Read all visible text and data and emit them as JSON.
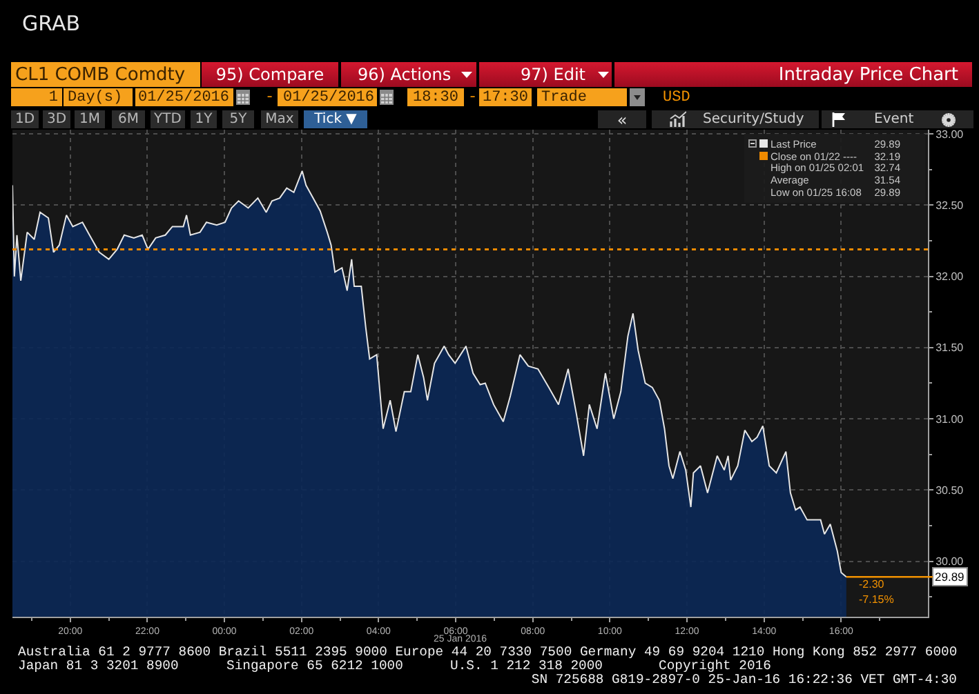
{
  "chart_data": {
    "type": "area",
    "title": "Intraday Price Chart",
    "subtitle": "CL1 COMB Comdty",
    "xlabel": "25 Jan 2016",
    "x": [
      "2016-01-24T18:30",
      "2016-01-24T18:33",
      "2016-01-24T18:37",
      "2016-01-24T18:43",
      "2016-01-24T18:53",
      "2016-01-24T19:04",
      "2016-01-24T19:13",
      "2016-01-24T19:26",
      "2016-01-24T19:34",
      "2016-01-24T19:43",
      "2016-01-24T19:54",
      "2016-01-24T20:04",
      "2016-01-24T20:19",
      "2016-01-24T20:30",
      "2016-01-24T20:45",
      "2016-01-24T21:00",
      "2016-01-24T21:13",
      "2016-01-24T21:24",
      "2016-01-24T21:39",
      "2016-01-24T21:52",
      "2016-01-24T22:01",
      "2016-01-24T22:13",
      "2016-01-24T22:28",
      "2016-01-24T22:39",
      "2016-01-24T22:56",
      "2016-01-24T23:01",
      "2016-01-24T23:07",
      "2016-01-24T23:22",
      "2016-01-24T23:32",
      "2016-01-24T23:48",
      "2016-01-25T00:01",
      "2016-01-25T00:11",
      "2016-01-25T00:22",
      "2016-01-25T00:37",
      "2016-01-25T00:52",
      "2016-01-25T01:05",
      "2016-01-25T01:14",
      "2016-01-25T01:26",
      "2016-01-25T01:37",
      "2016-01-25T01:48",
      "2016-01-25T02:01",
      "2016-01-25T02:07",
      "2016-01-25T02:18",
      "2016-01-25T02:29",
      "2016-01-25T02:40",
      "2016-01-25T02:46",
      "2016-01-25T02:52",
      "2016-01-25T03:03",
      "2016-01-25T03:11",
      "2016-01-25T03:18",
      "2016-01-25T03:22",
      "2016-01-25T03:33",
      "2016-01-25T03:40",
      "2016-01-25T03:46",
      "2016-01-25T03:57",
      "2016-01-25T04:07",
      "2016-01-25T04:18",
      "2016-01-25T04:27",
      "2016-01-25T04:40",
      "2016-01-25T04:50",
      "2016-01-25T05:01",
      "2016-01-25T05:10",
      "2016-01-25T05:16",
      "2016-01-25T05:27",
      "2016-01-25T05:42",
      "2016-01-25T05:49",
      "2016-01-25T05:59",
      "2016-01-25T06:16",
      "2016-01-25T06:27",
      "2016-01-25T06:38",
      "2016-01-25T06:46",
      "2016-01-25T06:59",
      "2016-01-25T07:14",
      "2016-01-25T07:25",
      "2016-01-25T07:40",
      "2016-01-25T07:53",
      "2016-01-25T08:08",
      "2016-01-25T08:25",
      "2016-01-25T08:40",
      "2016-01-25T08:55",
      "2016-01-25T09:08",
      "2016-01-25T09:19",
      "2016-01-25T09:28",
      "2016-01-25T09:40",
      "2016-01-25T09:53",
      "2016-01-25T10:06",
      "2016-01-25T10:17",
      "2016-01-25T10:28",
      "2016-01-25T10:36",
      "2016-01-25T10:44",
      "2016-01-25T10:55",
      "2016-01-25T11:06",
      "2016-01-25T11:17",
      "2016-01-25T11:25",
      "2016-01-25T11:32",
      "2016-01-25T11:38",
      "2016-01-25T11:49",
      "2016-01-25T11:58",
      "2016-01-25T12:06",
      "2016-01-25T12:10",
      "2016-01-25T12:21",
      "2016-01-25T12:32",
      "2016-01-25T12:47",
      "2016-01-25T12:58",
      "2016-01-25T13:04",
      "2016-01-25T13:08",
      "2016-01-25T13:19",
      "2016-01-25T13:30",
      "2016-01-25T13:41",
      "2016-01-25T13:49",
      "2016-01-25T13:58",
      "2016-01-25T14:08",
      "2016-01-25T14:19",
      "2016-01-25T14:34",
      "2016-01-25T14:41",
      "2016-01-25T14:49",
      "2016-01-25T14:56",
      "2016-01-25T15:07",
      "2016-01-25T15:17",
      "2016-01-25T15:28",
      "2016-01-25T15:34",
      "2016-01-25T15:43",
      "2016-01-25T15:54",
      "2016-01-25T16:00",
      "2016-01-25T16:08"
    ],
    "series": [
      {
        "name": "Last Price",
        "color": "#e6e6e6",
        "values": [
          32.64,
          32.0,
          32.29,
          31.97,
          32.31,
          32.26,
          32.45,
          32.41,
          32.17,
          32.22,
          32.43,
          32.35,
          32.38,
          32.29,
          32.17,
          32.12,
          32.19,
          32.29,
          32.27,
          32.29,
          32.19,
          32.27,
          32.29,
          32.35,
          32.35,
          32.43,
          32.29,
          32.31,
          32.38,
          32.36,
          32.38,
          32.48,
          32.53,
          32.48,
          32.55,
          32.45,
          32.53,
          32.55,
          32.62,
          32.59,
          32.74,
          32.64,
          32.55,
          32.46,
          32.31,
          32.22,
          32.03,
          32.06,
          31.9,
          32.12,
          31.93,
          31.93,
          31.64,
          31.42,
          31.45,
          30.93,
          31.13,
          30.91,
          31.19,
          31.19,
          31.45,
          31.29,
          31.13,
          31.39,
          31.51,
          31.45,
          31.39,
          31.51,
          31.32,
          31.24,
          31.25,
          31.1,
          30.98,
          31.16,
          31.45,
          31.37,
          31.35,
          31.22,
          31.1,
          31.35,
          31.03,
          30.74,
          31.1,
          30.93,
          31.32,
          31.0,
          31.19,
          31.58,
          31.74,
          31.48,
          31.25,
          31.22,
          31.13,
          30.93,
          30.67,
          30.58,
          30.77,
          30.64,
          30.38,
          30.62,
          30.67,
          30.48,
          30.74,
          30.64,
          30.74,
          30.57,
          30.67,
          30.92,
          30.84,
          30.87,
          30.95,
          30.67,
          30.62,
          30.77,
          30.48,
          30.36,
          30.38,
          30.29,
          30.29,
          30.29,
          30.19,
          30.26,
          30.07,
          29.92,
          29.89
        ]
      }
    ],
    "xlim": [
      "2016-01-24T18:30",
      "2016-01-25T18:15"
    ],
    "xticks": [
      {
        "value": "2016-01-24T19:00",
        "label": null
      },
      {
        "value": "2016-01-24T20:00",
        "label": "20:00"
      },
      {
        "value": "2016-01-24T21:00",
        "label": null
      },
      {
        "value": "2016-01-24T22:00",
        "label": "22:00"
      },
      {
        "value": "2016-01-24T23:00",
        "label": null
      },
      {
        "value": "2016-01-25T00:00",
        "label": "00:00"
      },
      {
        "value": "2016-01-25T01:00",
        "label": null
      },
      {
        "value": "2016-01-25T02:00",
        "label": "02:00"
      },
      {
        "value": "2016-01-25T03:00",
        "label": null
      },
      {
        "value": "2016-01-25T04:00",
        "label": "04:00"
      },
      {
        "value": "2016-01-25T05:00",
        "label": null
      },
      {
        "value": "2016-01-25T06:00",
        "label": "06:00"
      },
      {
        "value": "2016-01-25T07:00",
        "label": null
      },
      {
        "value": "2016-01-25T08:00",
        "label": "08:00"
      },
      {
        "value": "2016-01-25T09:00",
        "label": null
      },
      {
        "value": "2016-01-25T10:00",
        "label": "10:00"
      },
      {
        "value": "2016-01-25T11:00",
        "label": null
      },
      {
        "value": "2016-01-25T12:00",
        "label": "12:00"
      },
      {
        "value": "2016-01-25T13:00",
        "label": null
      },
      {
        "value": "2016-01-25T14:00",
        "label": "14:00"
      },
      {
        "value": "2016-01-25T15:00",
        "label": null
      },
      {
        "value": "2016-01-25T16:00",
        "label": "16:00"
      },
      {
        "value": "2016-01-25T17:00",
        "label": null
      }
    ],
    "ylim": [
      29.61,
      33.03
    ],
    "yticks": [
      {
        "value": 29.75,
        "label": null
      },
      {
        "value": 30,
        "label": "30.00"
      },
      {
        "value": 30.25,
        "label": null
      },
      {
        "value": 30.5,
        "label": "30.50"
      },
      {
        "value": 30.75,
        "label": null
      },
      {
        "value": 31,
        "label": "31.00"
      },
      {
        "value": 31.25,
        "label": null
      },
      {
        "value": 31.5,
        "label": "31.50"
      },
      {
        "value": 31.75,
        "label": null
      },
      {
        "value": 32,
        "label": "32.00"
      },
      {
        "value": 32.25,
        "label": null
      },
      {
        "value": 32.5,
        "label": "32.50"
      },
      {
        "value": 32.75,
        "label": null
      },
      {
        "value": 33,
        "label": "33.00"
      }
    ],
    "ref_lines": [
      {
        "axis": "y",
        "value": 32.19,
        "label": "Close on 01/22 ----",
        "color": "#f08a00",
        "line_style": "dotted"
      }
    ],
    "grid": true,
    "legend": "top right",
    "annotations": [
      "GRAB",
      "95) Compare",
      "96) Actions",
      "97) Edit",
      "1",
      "Day(s)",
      "01/25/2016",
      "-",
      "01/25/2016",
      "18:30",
      "-",
      "17:30",
      "Trade",
      "USD",
      "1D",
      "3D",
      "1M",
      "6M",
      "YTD",
      "1Y",
      "5Y",
      "Max",
      "Tick ▼",
      "«",
      "Security/Study",
      "Event",
      "29.89",
      "32.19",
      "High on 01/25 02:01",
      "32.74",
      "Average",
      "31.54",
      "Low on 01/25 16:08",
      "29.89",
      "-2.30",
      "-7.15%",
      "Australia 61 2 9777 8600 Brazil 5511 2395 9000 Europe 44 20 7330 7500 Germany 49 69 9204 1210 Hong Kong 852 2977 6000",
      "Japan 81 3 3201 8900",
      "Singapore 65 6212 1000",
      "U.S. 1 212 318 2000",
      "Copyright 2016",
      "SN 725688 G819-2897-0 25-Jan-16 16:22:36 VET GMT-4:30",
      {
        "text": "29.89",
        "x": "2016-01-25T16:08",
        "y": 29.89
      }
    ]
  }
}
